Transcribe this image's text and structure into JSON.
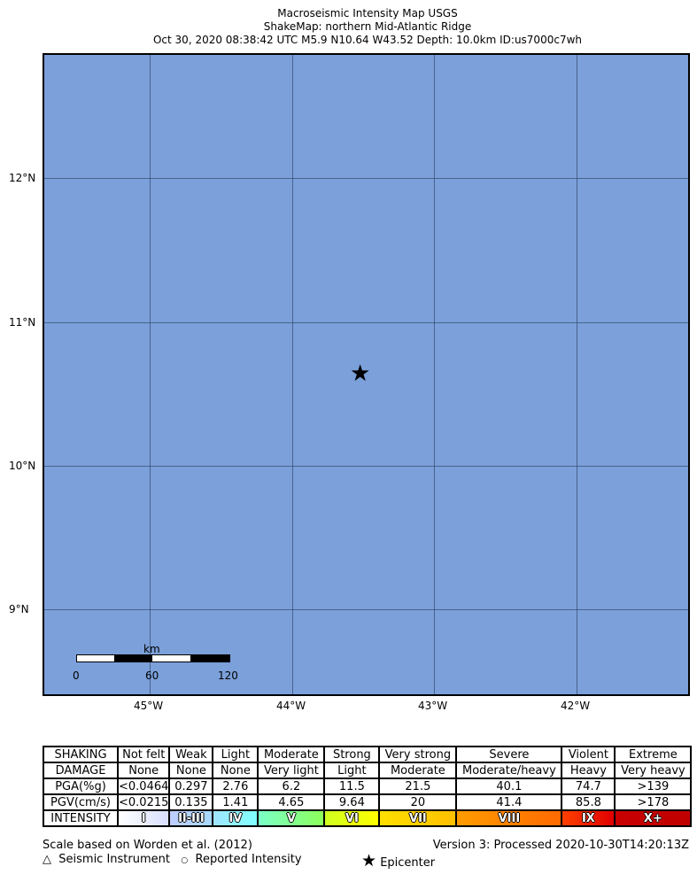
{
  "title": {
    "line1": "Macroseismic Intensity Map USGS",
    "line2": "ShakeMap: northern Mid-Atlantic Ridge",
    "line3": "Oct 30, 2020 08:38:42 UTC M5.9 N10.64 W43.52 Depth: 10.0km ID:us7000c7wh"
  },
  "map": {
    "ocean_color": "#7ba0da",
    "lat_labels": [
      "12°N",
      "11°N",
      "10°N",
      "9°N"
    ],
    "lon_labels": [
      "45°W",
      "44°W",
      "43°W",
      "42°W"
    ],
    "epicenter": {
      "lat": 10.64,
      "lon": -43.52,
      "icon": "star-icon"
    },
    "scale_bar": {
      "unit": "km",
      "ticks": [
        "0",
        "60",
        "120"
      ]
    }
  },
  "legend_table": {
    "rows": [
      {
        "header": "SHAKING",
        "cells": [
          "Not felt",
          "Weak",
          "Light",
          "Moderate",
          "Strong",
          "Very strong",
          "Severe",
          "Violent",
          "Extreme"
        ]
      },
      {
        "header": "DAMAGE",
        "cells": [
          "None",
          "None",
          "None",
          "Very light",
          "Light",
          "Moderate",
          "Moderate/heavy",
          "Heavy",
          "Very heavy"
        ]
      },
      {
        "header": "PGA(%g)",
        "cells": [
          "<0.0464",
          "0.297",
          "2.76",
          "6.2",
          "11.5",
          "21.5",
          "40.1",
          "74.7",
          ">139"
        ]
      },
      {
        "header": "PGV(cm/s)",
        "cells": [
          "<0.0215",
          "0.135",
          "1.41",
          "4.65",
          "9.64",
          "20",
          "41.4",
          "85.8",
          ">178"
        ]
      }
    ],
    "intensity": {
      "header": "INTENSITY",
      "cells": [
        "I",
        "II-III",
        "IV",
        "V",
        "VI",
        "VII",
        "VIII",
        "IX",
        "X+"
      ],
      "colors": [
        [
          "#ffffff",
          "#d8dffe"
        ],
        [
          "#bfccff",
          "#a7d9ff"
        ],
        [
          "#a0e6ff",
          "#80ffff"
        ],
        [
          "#7affc8",
          "#8cff5a"
        ],
        [
          "#d0ff20",
          "#ffff00"
        ],
        [
          "#ffe000",
          "#ffc000"
        ],
        [
          "#ff9c00",
          "#ff6a00"
        ],
        [
          "#ff4000",
          "#e00000"
        ],
        [
          "#c80000",
          "#c00000"
        ]
      ]
    }
  },
  "footer": {
    "scale_note": "Scale based on Worden et al. (2012)",
    "version": "Version 3: Processed 2020-10-30T14:20:13Z",
    "legend_instrument": "Seismic Instrument",
    "legend_reported": "Reported Intensity",
    "legend_epicenter": "Epicenter"
  }
}
